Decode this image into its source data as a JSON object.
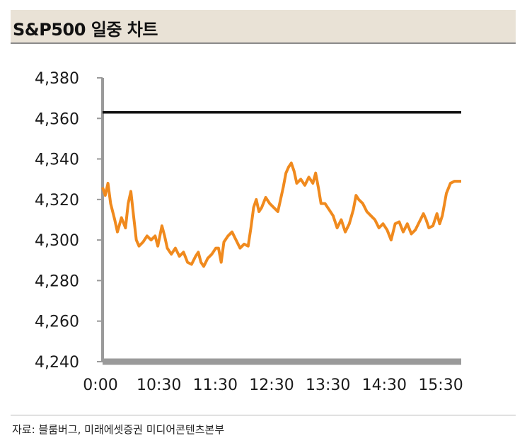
{
  "title": "S&P500 일중 차트",
  "source": "자료: 블룸버그, 미래에셋증권 미디어콘텐츠본부",
  "chart_data": {
    "type": "line",
    "ylim": [
      4240,
      4380
    ],
    "y_ticks": [
      4380,
      4360,
      4340,
      4320,
      4300,
      4280,
      4260,
      4240
    ],
    "y_tick_labels": [
      "4,380",
      "4,360",
      "4,340",
      "4,320",
      "4,300",
      "4,280",
      "4,260",
      "4,240"
    ],
    "x_tick_labels": [
      "0:00",
      "10:30",
      "11:30",
      "12:30",
      "13:30",
      "14:30",
      "15:30"
    ],
    "grid": false,
    "legend": "none",
    "series": [
      {
        "color": "#f08a1e",
        "points": [
          [
            0.0,
            4326
          ],
          [
            0.02,
            4322
          ],
          [
            0.04,
            4328
          ],
          [
            0.06,
            4318
          ],
          [
            0.09,
            4310
          ],
          [
            0.11,
            4304
          ],
          [
            0.14,
            4311
          ],
          [
            0.17,
            4306
          ],
          [
            0.19,
            4318
          ],
          [
            0.21,
            4324
          ],
          [
            0.23,
            4312
          ],
          [
            0.25,
            4300
          ],
          [
            0.27,
            4297
          ],
          [
            0.3,
            4299
          ],
          [
            0.33,
            4302
          ],
          [
            0.36,
            4300
          ],
          [
            0.39,
            4302
          ],
          [
            0.41,
            4297
          ],
          [
            0.44,
            4307
          ],
          [
            0.46,
            4302
          ],
          [
            0.48,
            4296
          ],
          [
            0.51,
            4293
          ],
          [
            0.54,
            4296
          ],
          [
            0.57,
            4292
          ],
          [
            0.6,
            4294
          ],
          [
            0.63,
            4289
          ],
          [
            0.66,
            4288
          ],
          [
            0.69,
            4292
          ],
          [
            0.71,
            4294
          ],
          [
            0.73,
            4289
          ],
          [
            0.75,
            4287
          ],
          [
            0.78,
            4291
          ],
          [
            0.81,
            4293
          ],
          [
            0.84,
            4296
          ],
          [
            0.86,
            4296
          ],
          [
            0.88,
            4289
          ],
          [
            0.9,
            4299
          ],
          [
            0.93,
            4302
          ],
          [
            0.96,
            4304
          ],
          [
            0.99,
            4300
          ],
          [
            1.02,
            4296
          ],
          [
            1.05,
            4298
          ],
          [
            1.08,
            4297
          ],
          [
            1.1,
            4306
          ],
          [
            1.12,
            4316
          ],
          [
            1.14,
            4320
          ],
          [
            1.16,
            4314
          ],
          [
            1.18,
            4316
          ],
          [
            1.21,
            4321
          ],
          [
            1.24,
            4318
          ],
          [
            1.27,
            4316
          ],
          [
            1.3,
            4314
          ],
          [
            1.32,
            4320
          ],
          [
            1.34,
            4326
          ],
          [
            1.36,
            4333
          ],
          [
            1.38,
            4336
          ],
          [
            1.4,
            4338
          ],
          [
            1.42,
            4334
          ],
          [
            1.44,
            4328
          ],
          [
            1.47,
            4330
          ],
          [
            1.5,
            4327
          ],
          [
            1.53,
            4331
          ],
          [
            1.56,
            4328
          ],
          [
            1.58,
            4333
          ],
          [
            1.6,
            4326
          ],
          [
            1.62,
            4318
          ],
          [
            1.65,
            4318
          ],
          [
            1.68,
            4315
          ],
          [
            1.71,
            4312
          ],
          [
            1.74,
            4306
          ],
          [
            1.77,
            4310
          ],
          [
            1.8,
            4304
          ],
          [
            1.83,
            4308
          ],
          [
            1.86,
            4315
          ],
          [
            1.88,
            4322
          ],
          [
            1.9,
            4320
          ],
          [
            1.93,
            4318
          ],
          [
            1.96,
            4314
          ],
          [
            1.99,
            4312
          ],
          [
            2.02,
            4310
          ],
          [
            2.05,
            4306
          ],
          [
            2.08,
            4308
          ],
          [
            2.11,
            4305
          ],
          [
            2.14,
            4300
          ],
          [
            2.17,
            4308
          ],
          [
            2.2,
            4309
          ],
          [
            2.23,
            4304
          ],
          [
            2.26,
            4308
          ],
          [
            2.29,
            4303
          ],
          [
            2.32,
            4305
          ],
          [
            2.35,
            4309
          ],
          [
            2.38,
            4313
          ],
          [
            2.4,
            4310
          ],
          [
            2.42,
            4306
          ],
          [
            2.45,
            4307
          ],
          [
            2.48,
            4313
          ],
          [
            2.5,
            4308
          ],
          [
            2.52,
            4312
          ],
          [
            2.55,
            4323
          ],
          [
            2.58,
            4328
          ],
          [
            2.61,
            4329
          ],
          [
            2.64,
            4329
          ],
          [
            2.66,
            4329
          ]
        ]
      },
      {
        "color": "#111111",
        "points": [
          [
            0.0,
            4363
          ],
          [
            2.66,
            4363
          ]
        ]
      }
    ]
  }
}
